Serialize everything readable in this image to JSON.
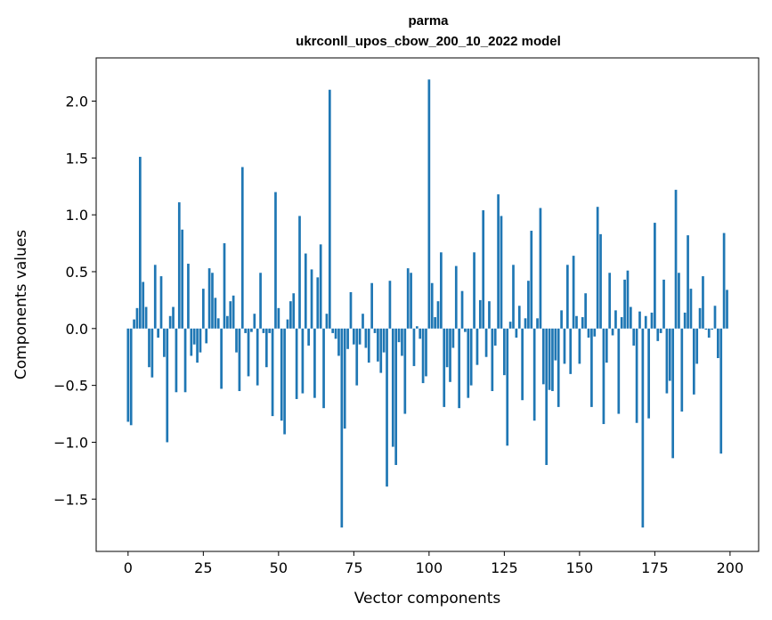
{
  "chart_data": {
    "type": "bar",
    "title": "parma",
    "subtitle": "ukrconll_upos_cbow_200_10_2022 model",
    "xlabel": "Vector components",
    "ylabel": "Components values",
    "xlim": [
      -10.6,
      209.5
    ],
    "ylim": [
      -1.96,
      2.38
    ],
    "xticks": [
      0,
      25,
      50,
      75,
      100,
      125,
      150,
      175,
      200
    ],
    "xtick_labels": [
      "0",
      "25",
      "50",
      "75",
      "100",
      "125",
      "150",
      "175",
      "200"
    ],
    "yticks": [
      -1.5,
      -1.0,
      -0.5,
      0.0,
      0.5,
      1.0,
      1.5,
      2.0
    ],
    "ytick_labels": [
      "−1.5",
      "−1.0",
      "−0.5",
      "0.0",
      "0.5",
      "1.0",
      "1.5",
      "2.0"
    ],
    "grid": false,
    "color": "#1f77b4",
    "values": [
      -0.82,
      -0.85,
      0.08,
      0.18,
      1.51,
      0.41,
      0.19,
      -0.34,
      -0.43,
      0.56,
      -0.08,
      0.46,
      -0.25,
      -1.0,
      0.11,
      0.19,
      -0.56,
      1.11,
      0.87,
      -0.56,
      0.57,
      -0.24,
      -0.14,
      -0.3,
      -0.21,
      0.35,
      -0.13,
      0.53,
      0.49,
      0.27,
      0.09,
      -0.53,
      0.75,
      0.11,
      0.24,
      0.29,
      -0.21,
      -0.55,
      1.42,
      -0.04,
      -0.42,
      -0.03,
      0.13,
      -0.5,
      0.49,
      -0.04,
      -0.34,
      -0.04,
      -0.77,
      1.2,
      0.18,
      -0.81,
      -0.93,
      0.08,
      0.24,
      0.31,
      -0.62,
      0.99,
      -0.57,
      0.66,
      -0.15,
      0.52,
      -0.61,
      0.45,
      0.74,
      -0.7,
      0.13,
      2.1,
      -0.04,
      -0.09,
      -0.24,
      -1.75,
      -0.88,
      -0.18,
      0.32,
      -0.14,
      -0.5,
      -0.14,
      0.13,
      -0.17,
      -0.3,
      0.4,
      -0.04,
      -0.29,
      -0.39,
      -0.21,
      -1.39,
      0.42,
      -1.04,
      -1.2,
      -0.12,
      -0.24,
      -0.75,
      0.53,
      0.49,
      -0.33,
      0.02,
      -0.09,
      -0.48,
      -0.42,
      2.19,
      0.4,
      0.1,
      0.24,
      0.67,
      -0.69,
      -0.34,
      -0.47,
      -0.17,
      0.55,
      -0.7,
      0.33,
      -0.03,
      -0.61,
      -0.5,
      0.67,
      -0.32,
      0.25,
      1.04,
      -0.25,
      0.24,
      -0.55,
      -0.15,
      1.18,
      0.99,
      -0.41,
      -1.03,
      0.06,
      0.56,
      -0.08,
      0.2,
      -0.63,
      0.09,
      0.42,
      0.86,
      -0.81,
      0.09,
      1.06,
      -0.49,
      -1.2,
      -0.54,
      -0.55,
      -0.28,
      -0.69,
      0.16,
      -0.31,
      0.56,
      -0.4,
      0.64,
      0.11,
      -0.31,
      0.1,
      0.31,
      -0.08,
      -0.69,
      -0.07,
      1.07,
      0.83,
      -0.84,
      -0.3,
      0.49,
      -0.06,
      0.16,
      -0.75,
      0.1,
      0.43,
      0.51,
      0.19,
      -0.15,
      -0.83,
      0.15,
      -1.75,
      0.11,
      -0.79,
      0.14,
      0.93,
      -0.11,
      -0.04,
      0.43,
      -0.57,
      -0.46,
      -1.14,
      1.22,
      0.49,
      -0.73,
      0.14,
      0.82,
      0.35,
      -0.58,
      -0.31,
      0.18,
      0.46,
      -0.01,
      -0.08,
      -0.01,
      0.2,
      -0.26,
      -1.1,
      0.84,
      0.34
    ]
  }
}
